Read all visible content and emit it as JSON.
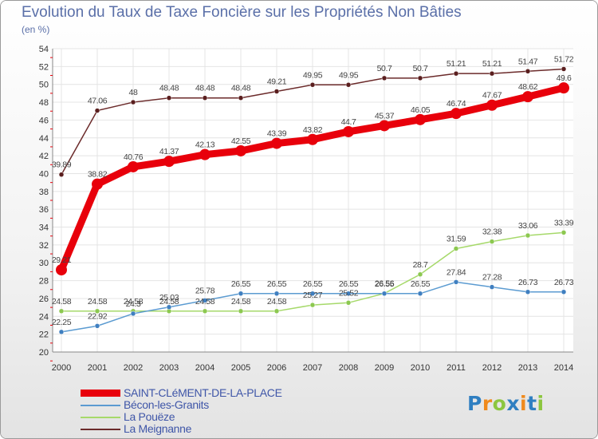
{
  "title": "Evolution du Taux de Taxe Foncière sur les Propriétés Non Bâties",
  "subtitle": "(en %)",
  "logo": {
    "letters": [
      "P",
      "r",
      "o",
      "x",
      "i",
      "t",
      "i"
    ],
    "colors": [
      "#2f7fc1",
      "#f08a1c",
      "#8cc63f",
      "#2f7fc1",
      "#f08a1c",
      "#2f7fc1",
      "#8cc63f"
    ]
  },
  "chart_data": {
    "type": "line",
    "title": "Evolution du Taux de Taxe Foncière sur les Propriétés Non Bâties",
    "ylabel": "(en %)",
    "xlabel": "",
    "ylim": [
      20,
      54
    ],
    "yticks": [
      20,
      22,
      24,
      26,
      28,
      30,
      32,
      34,
      36,
      38,
      40,
      42,
      44,
      46,
      48,
      50,
      52,
      54
    ],
    "categories": [
      "2000",
      "2001",
      "2002",
      "2003",
      "2004",
      "2005",
      "2006",
      "2007",
      "2008",
      "2009",
      "2010",
      "2011",
      "2012",
      "2013",
      "2014"
    ],
    "grid": true,
    "series": [
      {
        "name": "SAINT-CLéMENT-DE-LA-PLACE",
        "color": "#e8000b",
        "emphasis": true,
        "values": [
          29.21,
          38.82,
          40.76,
          41.37,
          42.13,
          42.55,
          43.39,
          43.82,
          44.7,
          45.37,
          46.05,
          46.74,
          47.67,
          48.62,
          49.6
        ],
        "labels": [
          "29.21",
          "38.82",
          "40.76",
          "41.37",
          "42.13",
          "42.55",
          "43.39",
          "43.82",
          "44.7",
          "45.37",
          "46.05",
          "46.74",
          "47.67",
          "48.62",
          "49.6"
        ]
      },
      {
        "name": "Bécon-les-Granits",
        "color": "#5b9bd1",
        "values": [
          22.25,
          22.92,
          24.3,
          25.03,
          25.78,
          26.55,
          26.55,
          26.55,
          26.55,
          26.55,
          26.55,
          27.84,
          27.28,
          26.73,
          26.73
        ],
        "labels": [
          "22.25",
          "22.92",
          "24.3",
          "25.03",
          "25.78",
          "26.55",
          "26.55",
          "26.55",
          "26.55",
          "26.55",
          "26.55",
          "27.84",
          "27.28",
          "26.73",
          "26.73"
        ]
      },
      {
        "name": "La Pouëze",
        "color": "#a6d96a",
        "values": [
          24.58,
          24.58,
          24.58,
          24.58,
          24.58,
          24.58,
          24.58,
          25.27,
          25.52,
          26.56,
          28.7,
          31.59,
          32.38,
          33.06,
          33.39
        ],
        "labels": [
          "24.58",
          "24.58",
          "24.58",
          "24.58",
          "24.58",
          "24.58",
          "24.58",
          "25.27",
          "25.52",
          "26.56",
          "28.7",
          "31.59",
          "32.38",
          "33.06",
          "33.39"
        ]
      },
      {
        "name": "La Meignanne",
        "color": "#6b2a2a",
        "values": [
          39.89,
          47.06,
          48,
          48.48,
          48.48,
          48.48,
          49.21,
          49.95,
          49.95,
          50.7,
          50.7,
          51.21,
          51.21,
          51.47,
          51.72
        ],
        "labels": [
          "39.89",
          "47.06",
          "48",
          "48.48",
          "48.48",
          "48.48",
          "49.21",
          "49.95",
          "49.95",
          "50.7",
          "50.7",
          "51.21",
          "51.21",
          "51.47",
          "51.72"
        ]
      }
    ],
    "legend_position": "bottom-left"
  }
}
